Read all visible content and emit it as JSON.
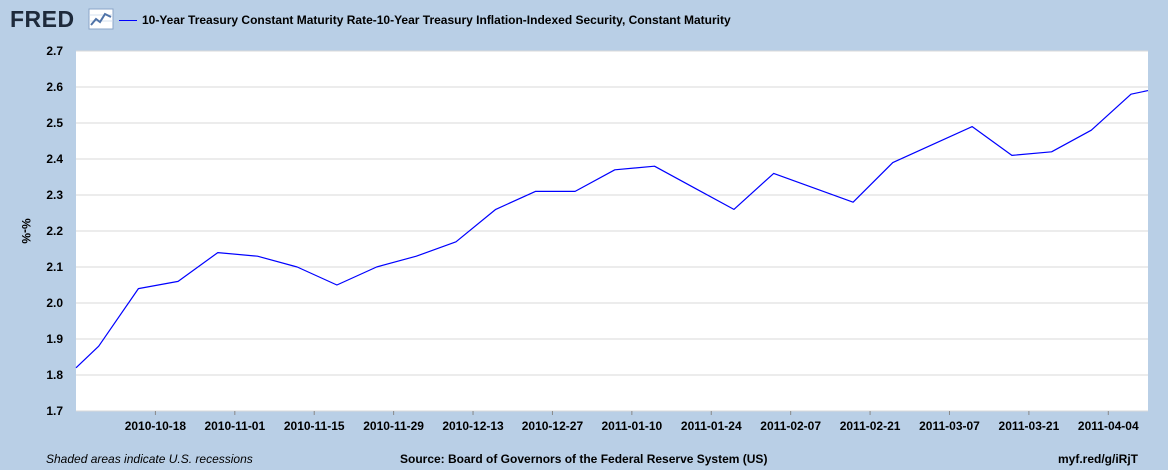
{
  "brand": {
    "logo_text": "FRED",
    "logo_icon": "line-chart-icon"
  },
  "legend": {
    "label": "10-Year Treasury Constant Maturity Rate-10-Year Treasury Inflation-Indexed Security, Constant Maturity",
    "color": "#0000ff"
  },
  "footer": {
    "note": "Shaded areas indicate U.S. recessions",
    "source": "Source: Board of Governors of the Federal Reserve System (US)",
    "link": "myf.red/g/iRjT"
  },
  "colors": {
    "background": "#b9cfe6",
    "plot_background": "#ffffff",
    "gridline": "#d9d9d9",
    "series": "#0000ff"
  },
  "chart_data": {
    "type": "line",
    "title": "",
    "xlabel": "",
    "ylabel": "%-%",
    "ylim": [
      1.7,
      2.7
    ],
    "yticks": [
      "1.7",
      "1.8",
      "1.9",
      "2.0",
      "2.1",
      "2.2",
      "2.3",
      "2.4",
      "2.5",
      "2.6",
      "2.7"
    ],
    "xticks": [
      "2010-10-18",
      "2010-11-01",
      "2010-11-15",
      "2010-11-29",
      "2010-12-13",
      "2010-12-27",
      "2011-01-10",
      "2011-01-24",
      "2011-02-07",
      "2011-02-21",
      "2011-03-07",
      "2011-03-21",
      "2011-04-04"
    ],
    "xlim": [
      "2010-10-04",
      "2011-04-11"
    ],
    "grid": "horizontal",
    "legend_position": "top",
    "series": [
      {
        "name": "10-Year Treasury Constant Maturity Rate-10-Year Treasury Inflation-Indexed Security, Constant Maturity",
        "x": [
          "2010-10-04",
          "2010-10-08",
          "2010-10-15",
          "2010-10-22",
          "2010-10-29",
          "2010-11-05",
          "2010-11-12",
          "2010-11-19",
          "2010-11-26",
          "2010-12-03",
          "2010-12-10",
          "2010-12-17",
          "2010-12-24",
          "2010-12-31",
          "2011-01-07",
          "2011-01-14",
          "2011-01-21",
          "2011-01-28",
          "2011-02-04",
          "2011-02-11",
          "2011-02-18",
          "2011-02-25",
          "2011-03-04",
          "2011-03-11",
          "2011-03-18",
          "2011-03-25",
          "2011-04-01",
          "2011-04-08",
          "2011-04-11"
        ],
        "y": [
          1.82,
          1.88,
          2.04,
          2.06,
          2.14,
          2.13,
          2.1,
          2.05,
          2.1,
          2.13,
          2.17,
          2.26,
          2.31,
          2.31,
          2.37,
          2.38,
          2.32,
          2.26,
          2.36,
          2.32,
          2.28,
          2.39,
          2.44,
          2.49,
          2.41,
          2.42,
          2.48,
          2.58,
          2.59
        ]
      }
    ]
  }
}
